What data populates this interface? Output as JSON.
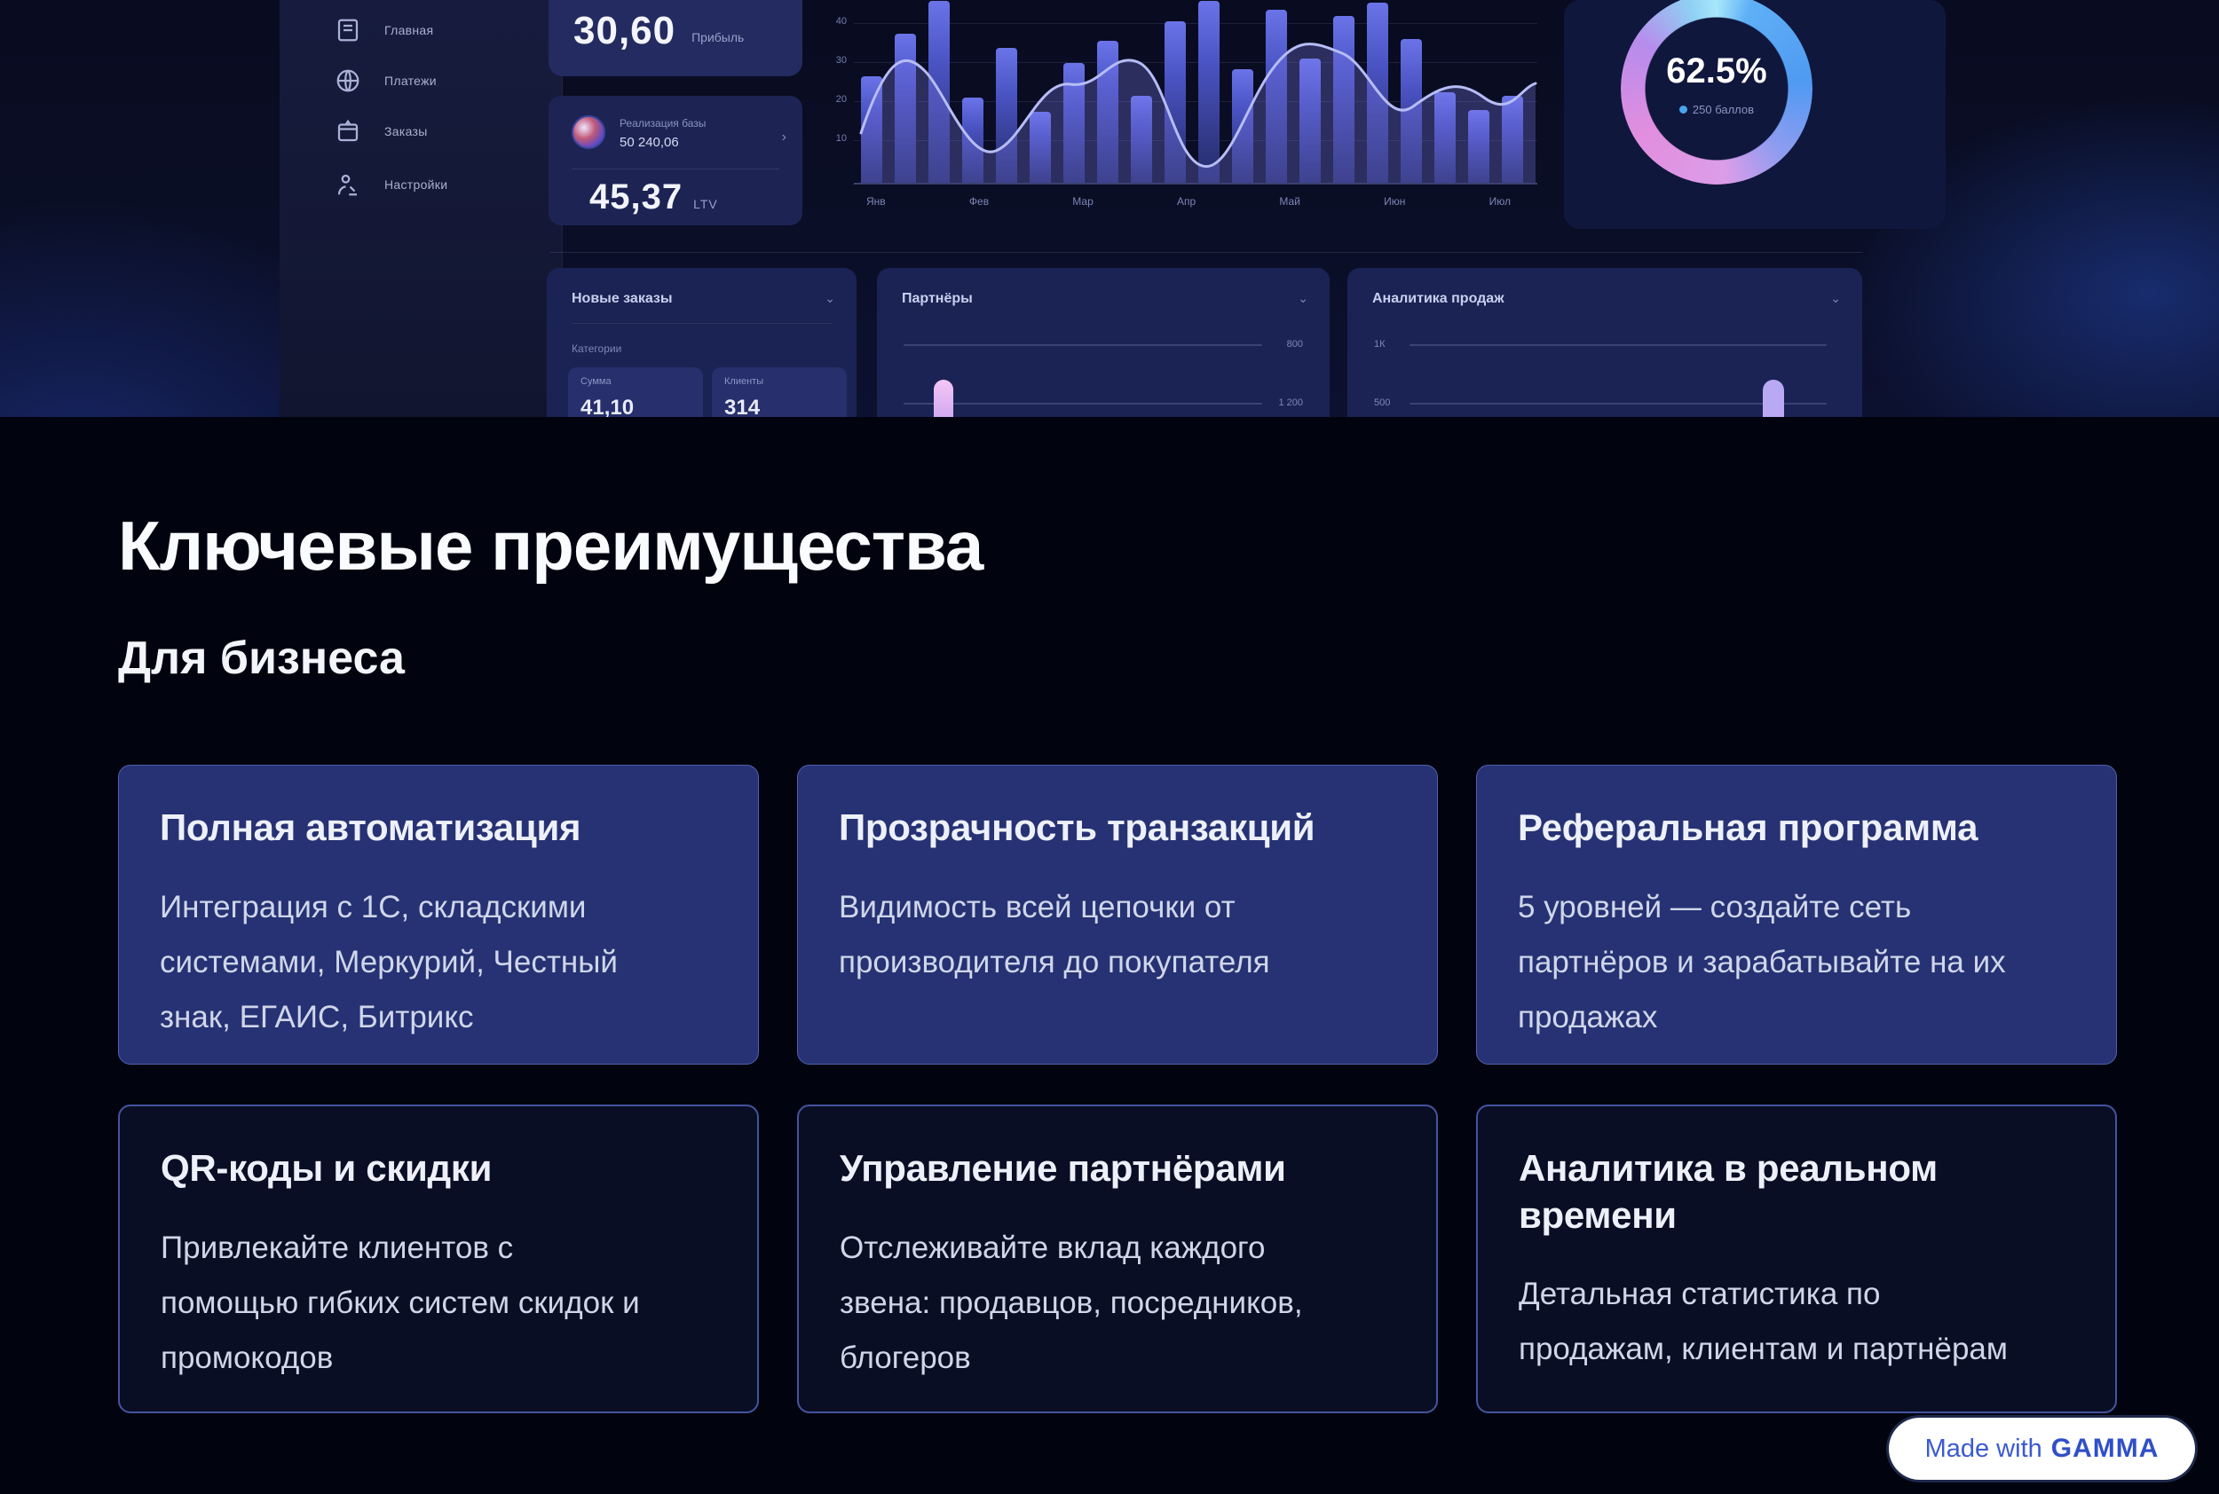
{
  "section": {
    "title": "Ключевые преимущества",
    "subtitle": "Для бизнеса"
  },
  "hero": {
    "sidebar": {
      "items": [
        {
          "label": "Главная"
        },
        {
          "label": "Платежи"
        },
        {
          "label": "Заказы"
        },
        {
          "label": "Настройки"
        }
      ]
    },
    "stat_card": {
      "value": "30,60",
      "label": "Прибыль"
    },
    "profile_card": {
      "line1": "Реализация базы",
      "line2": "50 240,06",
      "chevron": "›",
      "value": "45,37",
      "unit": "LTV"
    },
    "chart": {
      "type": "bar",
      "bars": [
        120,
        168,
        205,
        96,
        152,
        80,
        135,
        160,
        98,
        182,
        205,
        128,
        195,
        140,
        188,
        203,
        162,
        102,
        82,
        98
      ],
      "y_labels": [
        "40",
        "30",
        "20",
        "10"
      ],
      "x_labels": [
        "Янв",
        "Фев",
        "Мар",
        "Апр",
        "Май",
        "Июн",
        "Июл"
      ]
    },
    "donut": {
      "value": "62.5%",
      "caption": "250 баллов"
    },
    "panel_a": {
      "header": "Новые заказы",
      "chevron": "⌄",
      "sublabel": "Категории",
      "subcards": [
        {
          "label": "Сумма",
          "value": "41,10"
        },
        {
          "label": "Клиенты",
          "value": "314"
        }
      ]
    },
    "panel_b": {
      "header": "Партнёры",
      "chevron": "⌄",
      "row1_value": "800",
      "row2_value": "1 200"
    },
    "panel_c": {
      "header": "Аналитика продаж",
      "chevron": "⌄",
      "row1_label": "1К",
      "row2_label": "500"
    }
  },
  "cards": [
    {
      "title": "Полная автоматизация",
      "body": "Интеграция с 1С, складскими системами, Меркурий, Честный знак, ЕГАИС, Битрикс"
    },
    {
      "title": "Прозрачность транзакций",
      "body": "Видимость всей цепочки от производителя до покупателя"
    },
    {
      "title": "Реферальная программа",
      "body": "5 уровней — создайте сеть партнёров и зарабатывайте на их продажах"
    },
    {
      "title": "QR-коды и скидки",
      "body": "Привлекайте клиентов с помощью гибких систем скидок и промокодов"
    },
    {
      "title": "Управление партнёрами",
      "body": "Отслеживайте вклад каждого звена: продавцов, посредников, блогеров"
    },
    {
      "title": "Аналитика в реальном времени",
      "body": "Детальная статистика по продажам, клиентам и партнёрам"
    }
  ],
  "badge": {
    "prefix": "Made with",
    "brand": "GAMMA"
  },
  "colors": {
    "page_background": "#01040f",
    "card_filled": "#263273",
    "card_border": "#5060ae",
    "card_outline_border": "#44549f",
    "badge_text": "#3b5ad0",
    "donut_pink": "#e18ede",
    "donut_blue": "#4f9af2"
  }
}
